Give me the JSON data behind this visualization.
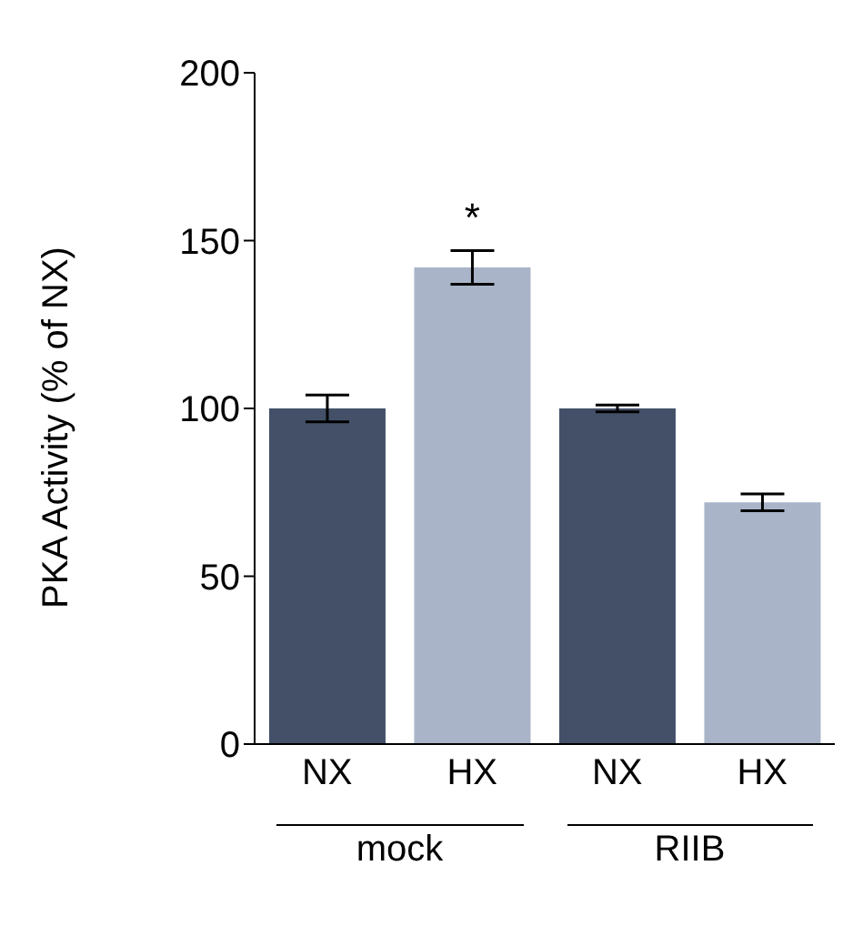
{
  "chart_data": {
    "type": "bar",
    "ylabel": "PKA Activity (% of NX)",
    "categories": [
      "NX",
      "HX",
      "NX",
      "HX"
    ],
    "values": [
      100,
      142,
      100,
      72
    ],
    "errors": [
      4,
      5,
      1,
      2.5
    ],
    "colors": [
      "#435068",
      "#a9b4c8",
      "#435068",
      "#a9b4c8"
    ],
    "ylim": [
      0,
      200
    ],
    "yticks": [
      0,
      50,
      100,
      150,
      200
    ],
    "annotations": [
      {
        "text": "*",
        "x": "HX",
        "y": 147
      },
      "mock",
      "RIIB"
    ]
  }
}
